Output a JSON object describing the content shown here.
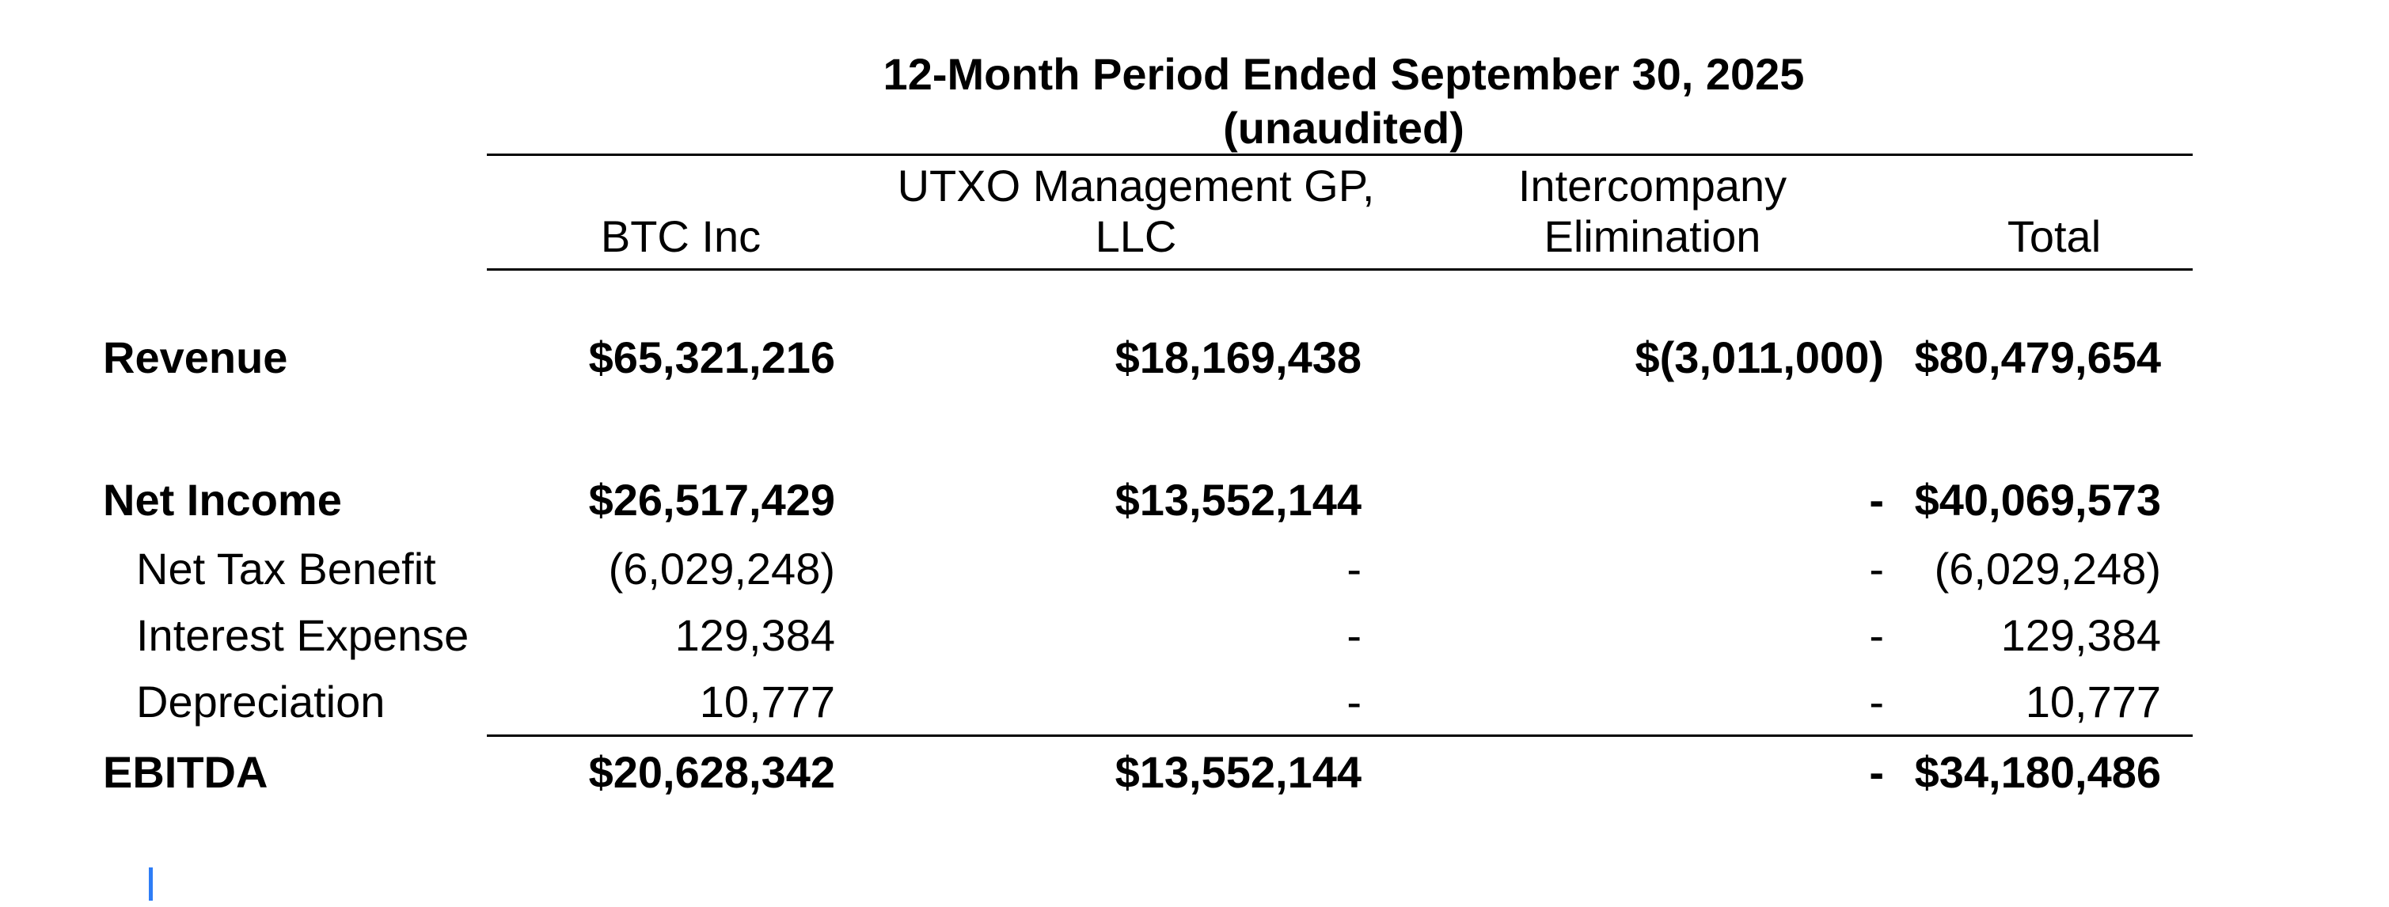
{
  "document": {
    "title": "12-Month Period Ended September 30, 2025",
    "subtitle": "(unaudited)"
  },
  "columns": {
    "btc": {
      "line1": "BTC Inc"
    },
    "utxo": {
      "line1": "UTXO Management GP,",
      "line2": "LLC"
    },
    "intercompany": {
      "line1": "Intercompany",
      "line2": "Elimination"
    },
    "total": {
      "line1": "Total"
    }
  },
  "rows": [
    {
      "label": "Revenue",
      "btc": "$65,321,216",
      "utxo": "$18,169,438",
      "intercompany": "$(3,011,000)",
      "total": "$80,479,654"
    },
    {
      "label": "Net Income",
      "btc": "$26,517,429",
      "utxo": "$13,552,144",
      "intercompany": "-",
      "total": "$40,069,573"
    },
    {
      "label": "Net Tax Benefit",
      "btc": "(6,029,248)",
      "utxo": "-",
      "intercompany": "-",
      "total": "(6,029,248)"
    },
    {
      "label": "Interest Expense",
      "btc": "129,384",
      "utxo": "-",
      "intercompany": "-",
      "total": "129,384"
    },
    {
      "label": "Depreciation",
      "btc": "10,777",
      "utxo": "-",
      "intercompany": "-",
      "total": "10,777"
    },
    {
      "label": "EBITDA",
      "btc": "$20,628,342",
      "utxo": "$13,552,144",
      "intercompany": "-",
      "total": "$34,180,486"
    }
  ],
  "colors": {
    "text": "#000000",
    "rule": "#000000",
    "caret": "#2e7df6",
    "background": "#ffffff"
  }
}
